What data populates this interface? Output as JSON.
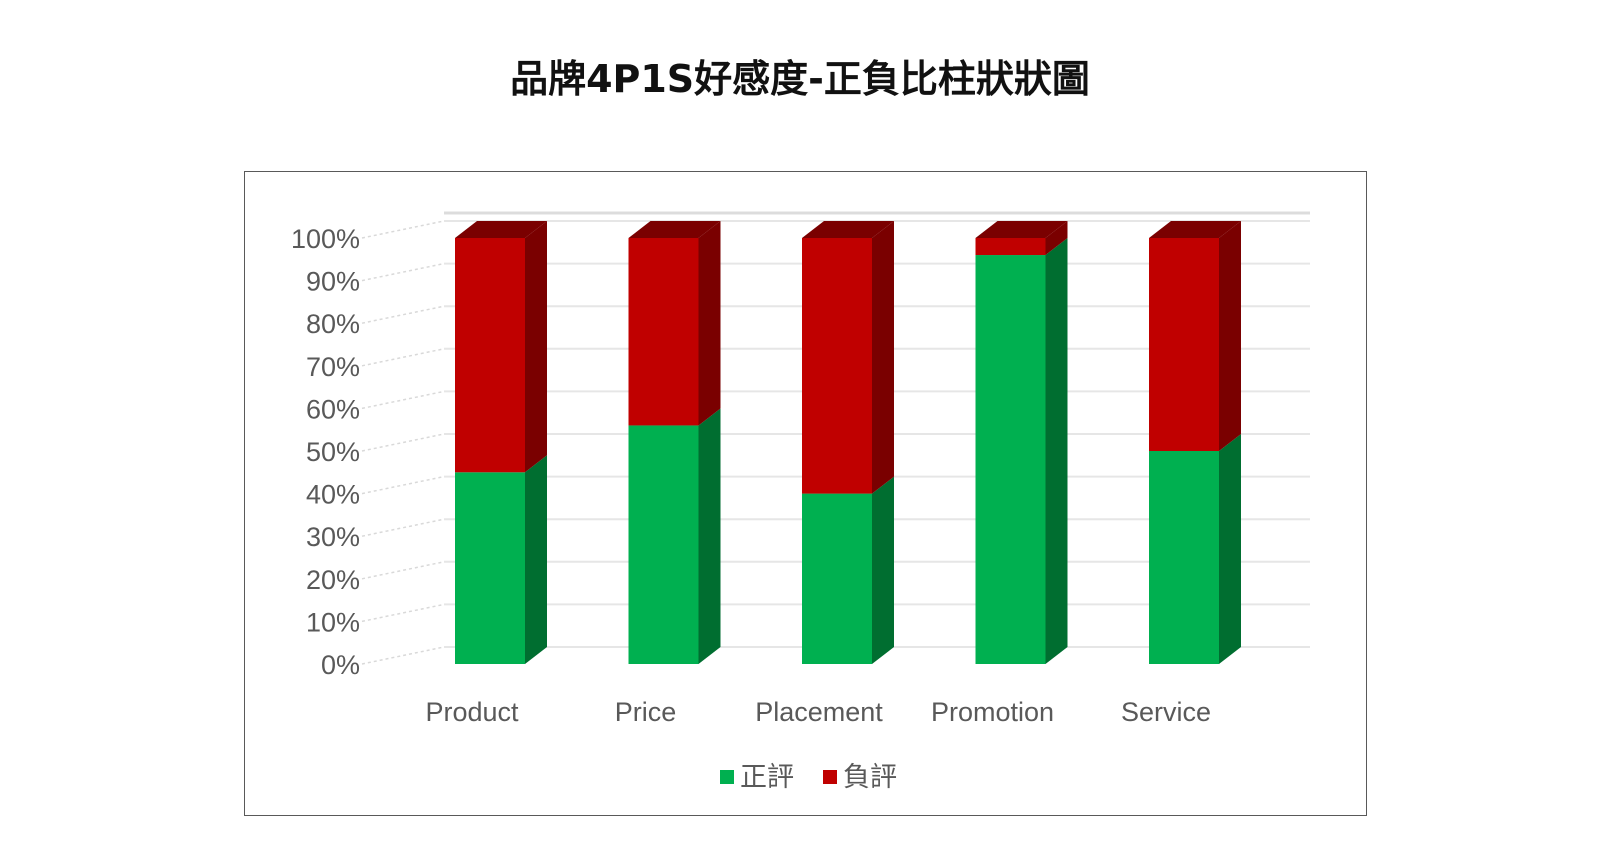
{
  "title": "品牌4P1S好感度-正負比柱狀狀圖",
  "chart_data": {
    "type": "bar",
    "stacked": true,
    "percent_stacked": true,
    "three_d": true,
    "categories": [
      "Product",
      "Price",
      "Placement",
      "Promotion",
      "Service"
    ],
    "series": [
      {
        "name": "正評",
        "values": [
          45,
          56,
          40,
          96,
          50
        ],
        "color": "#00b050",
        "side_color": "#006e30"
      },
      {
        "name": "負評",
        "values": [
          55,
          44,
          60,
          4,
          50
        ],
        "color": "#c00000",
        "side_color": "#7a0000"
      }
    ],
    "yticks": [
      "0%",
      "10%",
      "20%",
      "30%",
      "40%",
      "50%",
      "60%",
      "70%",
      "80%",
      "90%",
      "100%"
    ],
    "ylim": [
      0,
      100
    ],
    "grid": true,
    "legend": "bottom"
  }
}
